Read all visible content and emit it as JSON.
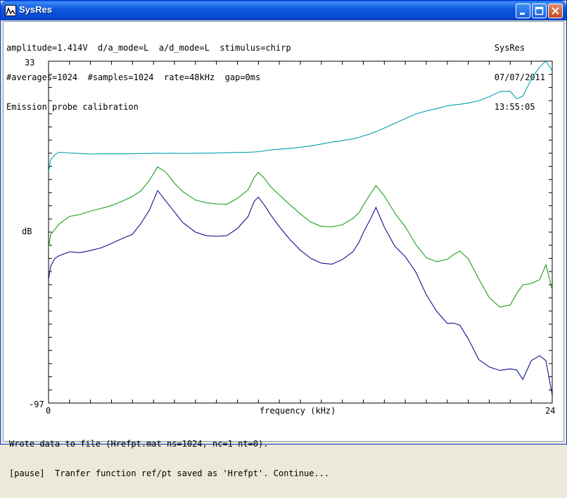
{
  "window": {
    "title": "SysRes"
  },
  "header": {
    "left": [
      "amplitude=1.414V  d/a_mode=L  a/d_mode=L  stimulus=chirp",
      "#averages=1024  #samples=1024  rate=48kHz  gap=0ms",
      "Emission probe calibration"
    ],
    "right": [
      "SysRes",
      "07/07/2011",
      "13:55:05"
    ]
  },
  "chart_data": {
    "type": "line",
    "xlabel": "frequency (kHz)",
    "ylabel": "dB",
    "xlim": [
      0,
      24
    ],
    "ylim": [
      -97,
      33
    ],
    "x_tick_labels": [
      "0",
      "24"
    ],
    "y_tick_labels": [
      "33",
      "-97"
    ],
    "x": [
      0,
      0.1,
      0.3,
      0.5,
      1.0,
      1.5,
      2.0,
      2.5,
      3.0,
      3.5,
      4.0,
      4.4,
      4.8,
      5.2,
      5.6,
      6.0,
      6.4,
      7.0,
      7.5,
      8.0,
      8.5,
      9.0,
      9.5,
      9.8,
      10.0,
      10.3,
      10.6,
      11.0,
      11.5,
      12.0,
      12.5,
      13.0,
      13.5,
      14.0,
      14.5,
      14.8,
      15.0,
      15.3,
      15.6,
      16.0,
      16.5,
      17.0,
      17.5,
      18.0,
      18.5,
      19.0,
      19.3,
      19.6,
      20.0,
      20.5,
      21.0,
      21.5,
      22.0,
      22.3,
      22.6,
      23.0,
      23.4,
      23.7,
      24.0
    ],
    "series": [
      {
        "color": "#00a0b0",
        "values": [
          -9,
          -4.5,
          -2.5,
          -1.6,
          -1.9,
          -2.1,
          -2.3,
          -2.2,
          -2.2,
          -2.2,
          -2.2,
          -2.1,
          -2.1,
          -2.0,
          -2.1,
          -2.0,
          -2.1,
          -2.0,
          -2.0,
          -1.9,
          -1.8,
          -1.7,
          -1.6,
          -1.5,
          -1.4,
          -1.1,
          -0.7,
          -0.5,
          -0.2,
          0.3,
          0.8,
          1.5,
          2.2,
          2.8,
          3.5,
          4.0,
          4.6,
          5.3,
          6.2,
          7.6,
          9.4,
          11.2,
          12.9,
          14.1,
          15.0,
          16.0,
          16.4,
          16.6,
          17.1,
          18.0,
          19.5,
          21.4,
          21.6,
          18.7,
          19.7,
          26.2,
          30.8,
          33.0,
          29.4
        ]
      },
      {
        "color": "#1a9e1a",
        "values": [
          -38,
          -33,
          -31,
          -29,
          -26,
          -25.3,
          -24,
          -23,
          -21.9,
          -20.3,
          -18.4,
          -16.3,
          -12.4,
          -7.2,
          -9.3,
          -13.4,
          -16.6,
          -19.8,
          -20.8,
          -21.3,
          -21.4,
          -19.2,
          -16.0,
          -11.2,
          -9.3,
          -11.7,
          -14.9,
          -17.9,
          -21.6,
          -25.1,
          -28.2,
          -29.8,
          -30.0,
          -29.2,
          -26.8,
          -24.5,
          -21.8,
          -17.9,
          -14.3,
          -18.2,
          -24.8,
          -30.0,
          -36.7,
          -41.7,
          -43.3,
          -42.3,
          -40.5,
          -39.2,
          -42.2,
          -49.8,
          -56.9,
          -60.5,
          -59.7,
          -55.4,
          -52.1,
          -51.5,
          -50.1,
          -44.4,
          -54.0
        ]
      },
      {
        "color": "#101090",
        "values": [
          -50,
          -45,
          -42,
          -41,
          -39.5,
          -39.8,
          -39,
          -38,
          -36.3,
          -34.5,
          -32.8,
          -28.7,
          -23.7,
          -16.2,
          -20.3,
          -24.3,
          -28.4,
          -32.0,
          -33.3,
          -33.6,
          -33.3,
          -30.6,
          -26.2,
          -20.2,
          -18.7,
          -21.9,
          -25.6,
          -30.0,
          -34.8,
          -38.9,
          -42.0,
          -43.8,
          -44.2,
          -42.4,
          -39.5,
          -35.8,
          -32.1,
          -27.6,
          -22.6,
          -30.1,
          -37.4,
          -41.4,
          -47.2,
          -55.8,
          -62.2,
          -66.7,
          -66.6,
          -67.4,
          -72.6,
          -80.5,
          -83.3,
          -84.6,
          -84.0,
          -84.4,
          -88.0,
          -80.9,
          -79.0,
          -80.9,
          -94.0
        ]
      }
    ]
  },
  "status": [
    "Wrote data to file (Hrefpt.mat ns=1024, nc=1 nt=0).",
    "[pause]  Tranfer function ref/pt saved as 'Hrefpt'. Continue..."
  ]
}
